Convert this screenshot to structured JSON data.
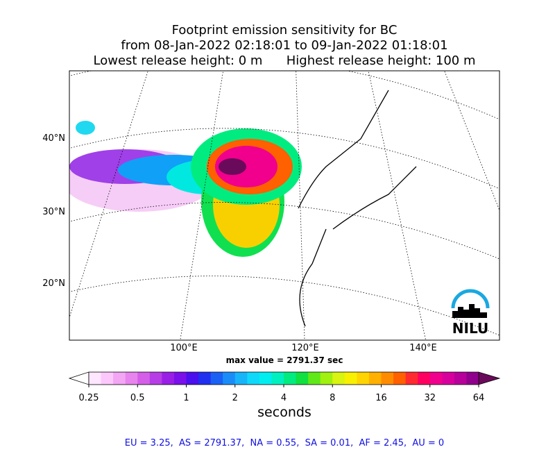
{
  "header": {
    "title_lines": [
      "Footprint emission sensitivity for BC",
      "from 08-Jan-2022 02:18:01 to 09-Jan-2022 01:18:01",
      "Lowest release height: 0 m      Highest release height: 100 m"
    ]
  },
  "map": {
    "lat_labels": [
      "40°N",
      "30°N",
      "20°N"
    ],
    "lon_labels": [
      "100°E",
      "120°E",
      "140°E"
    ],
    "logo": "NILU",
    "max_note": "max value = 2791.37 sec"
  },
  "colorbar": {
    "ticks": [
      0.25,
      0.5,
      1,
      2,
      4,
      8,
      16,
      32,
      64
    ],
    "label": "seconds",
    "colors": [
      "#ffffff",
      "#ffe6ff",
      "#fcc8fc",
      "#f2a6f4",
      "#e884ee",
      "#d45ee8",
      "#b73ee6",
      "#9a1fe6",
      "#7a10ea",
      "#4a10ee",
      "#2030f0",
      "#1a60f4",
      "#1a8cf8",
      "#18b4fa",
      "#10d8fa",
      "#00eef0",
      "#00f0c0",
      "#00ec80",
      "#10e040",
      "#60e818",
      "#a0f010",
      "#d8f410",
      "#f8f000",
      "#ffd400",
      "#ffb000",
      "#ff8c00",
      "#ff6000",
      "#ff2a30",
      "#ff0060",
      "#f0008c",
      "#d8009c",
      "#b8009a",
      "#90008c",
      "#6a0a5a"
    ]
  },
  "footer": {
    "summary": "EU = 3.25,  AS = 2791.37,  NA = 0.55,  SA = 0.01,  AF = 2.45,  AU = 0"
  }
}
